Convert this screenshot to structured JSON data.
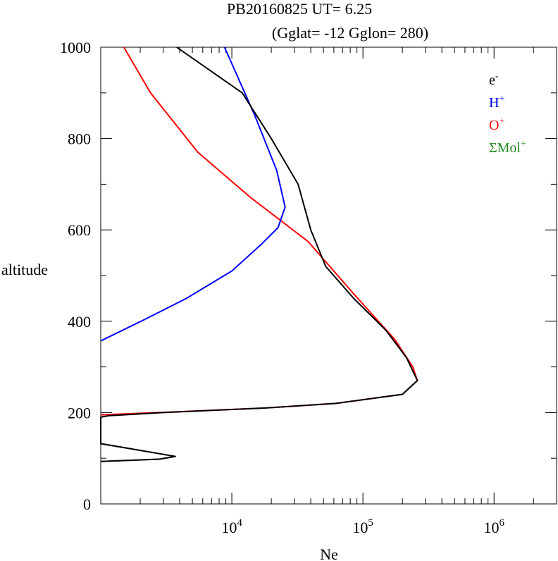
{
  "chart_data": {
    "type": "line",
    "title_line1": "PB20160825   UT=  6.25",
    "title_line2": "(Gglat= -12   Gglon=  280)",
    "xlabel": "Ne",
    "ylabel": "altitude",
    "xscale": "log",
    "xlim": [
      1000,
      3000000
    ],
    "ylim": [
      0,
      1000
    ],
    "xticks": [
      {
        "base": "10",
        "exp": "4",
        "value": 10000
      },
      {
        "base": "10",
        "exp": "5",
        "value": 100000
      },
      {
        "base": "10",
        "exp": "6",
        "value": 1000000
      }
    ],
    "yticks": [
      "0",
      "200",
      "400",
      "600",
      "800",
      "1000"
    ],
    "ytick_values": [
      0,
      200,
      400,
      600,
      800,
      1000
    ],
    "legend_position": "top-right",
    "series": [
      {
        "name": "e",
        "sup": "-",
        "color": "#000000",
        "points": [
          [
            3800,
            1000
          ],
          [
            12000,
            900
          ],
          [
            20000,
            800
          ],
          [
            32000,
            700
          ],
          [
            40000,
            600
          ],
          [
            52000,
            520
          ],
          [
            85000,
            450
          ],
          [
            150000,
            380
          ],
          [
            215000,
            320
          ],
          [
            260000,
            270
          ],
          [
            200000,
            240
          ],
          [
            62000,
            220
          ],
          [
            18000,
            210
          ],
          [
            3000,
            200
          ],
          [
            1150,
            193
          ],
          [
            1000,
            190
          ],
          [
            1000,
            132
          ],
          [
            2800,
            110
          ],
          [
            3700,
            104
          ],
          [
            2800,
            98
          ],
          [
            1000,
            93
          ]
        ]
      },
      {
        "name": "H",
        "sup": "+",
        "color": "#0000ff",
        "points": [
          [
            8800,
            1000
          ],
          [
            15000,
            850
          ],
          [
            22000,
            730
          ],
          [
            25500,
            650
          ],
          [
            22500,
            605
          ],
          [
            17000,
            570
          ],
          [
            10000,
            510
          ],
          [
            4500,
            450
          ],
          [
            2200,
            405
          ],
          [
            1000,
            357
          ]
        ]
      },
      {
        "name": "O",
        "sup": "+",
        "color": "#ff0000",
        "points": [
          [
            1500,
            1000
          ],
          [
            2400,
            900
          ],
          [
            5500,
            770
          ],
          [
            14000,
            670
          ],
          [
            38000,
            575
          ],
          [
            85000,
            460
          ],
          [
            175000,
            360
          ],
          [
            240000,
            300
          ],
          [
            260000,
            270
          ],
          [
            200000,
            240
          ],
          [
            62000,
            220
          ],
          [
            18000,
            210
          ],
          [
            4000,
            202
          ],
          [
            1000,
            195
          ]
        ]
      },
      {
        "name": "ΣMol",
        "sup": "+",
        "color": "#228b22",
        "points": [
          [
            1000,
            190
          ],
          [
            1000,
            132
          ],
          [
            2800,
            110
          ],
          [
            3700,
            104
          ],
          [
            2800,
            98
          ],
          [
            1000,
            93
          ]
        ]
      }
    ]
  }
}
